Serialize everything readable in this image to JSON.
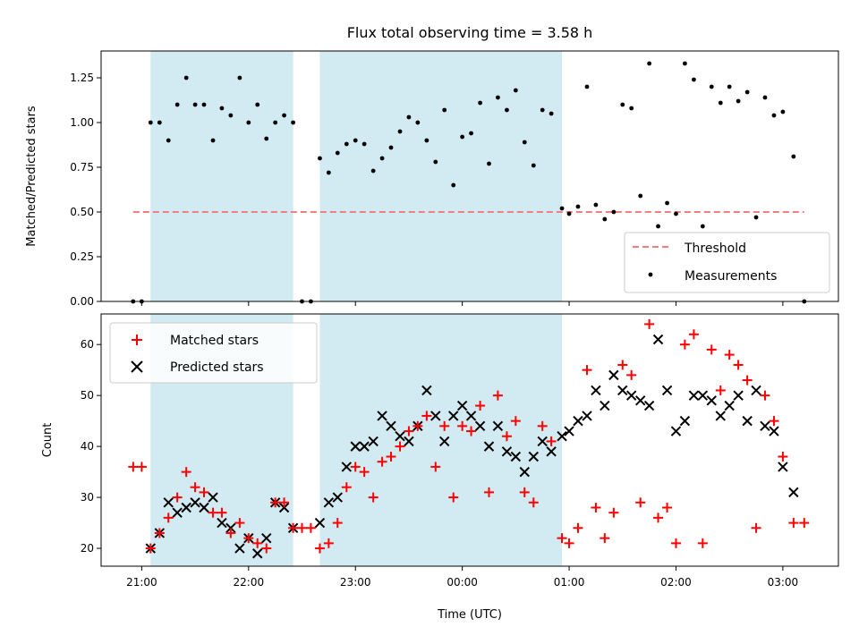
{
  "chart_data": [
    {
      "type": "scatter",
      "panel": "top",
      "title": "Flux total observing time = 3.58 h",
      "xlabel": "",
      "ylabel": "Matched/Predicted stars",
      "ylim": [
        0,
        1.4
      ],
      "yticks": [
        0,
        0.25,
        0.5,
        0.75,
        1.0,
        1.25
      ],
      "ytick_labels": [
        "0.00",
        "0.25",
        "0.50",
        "0.75",
        "1.00",
        "1.25"
      ],
      "x_unit": "hours since 21:00 UTC",
      "xlim": [
        -0.38,
        6.52
      ],
      "xticks": [
        0,
        1,
        2,
        3,
        4,
        5,
        6
      ],
      "shaded_spans": [
        [
          0.083,
          1.417
        ],
        [
          1.667,
          3.933
        ]
      ],
      "threshold": {
        "name": "Threshold",
        "y": 0.5,
        "x": [
          -0.08,
          6.2
        ],
        "color": "#f08080",
        "style": "dashed"
      },
      "series": [
        {
          "name": "Measurements",
          "color": "#000000",
          "marker": "dot",
          "points": [
            [
              -0.08,
              0.0
            ],
            [
              0.0,
              0.0
            ],
            [
              0.083,
              1.0
            ],
            [
              0.167,
              1.0
            ],
            [
              0.25,
              0.9
            ],
            [
              0.333,
              1.1
            ],
            [
              0.417,
              1.25
            ],
            [
              0.5,
              1.1
            ],
            [
              0.583,
              1.1
            ],
            [
              0.667,
              0.9
            ],
            [
              0.75,
              1.08
            ],
            [
              0.833,
              1.04
            ],
            [
              0.917,
              1.25
            ],
            [
              1.0,
              1.0
            ],
            [
              1.083,
              1.1
            ],
            [
              1.167,
              0.91
            ],
            [
              1.25,
              1.0
            ],
            [
              1.333,
              1.04
            ],
            [
              1.417,
              1.0
            ],
            [
              1.5,
              0.0
            ],
            [
              1.583,
              0.0
            ],
            [
              1.667,
              0.8
            ],
            [
              1.75,
              0.72
            ],
            [
              1.833,
              0.83
            ],
            [
              1.917,
              0.88
            ],
            [
              2.0,
              0.9
            ],
            [
              2.083,
              0.88
            ],
            [
              2.167,
              0.73
            ],
            [
              2.25,
              0.8
            ],
            [
              2.333,
              0.86
            ],
            [
              2.417,
              0.95
            ],
            [
              2.5,
              1.03
            ],
            [
              2.583,
              1.0
            ],
            [
              2.667,
              0.9
            ],
            [
              2.75,
              0.78
            ],
            [
              2.833,
              1.07
            ],
            [
              2.917,
              0.65
            ],
            [
              3.0,
              0.92
            ],
            [
              3.083,
              0.94
            ],
            [
              3.167,
              1.11
            ],
            [
              3.25,
              0.77
            ],
            [
              3.333,
              1.14
            ],
            [
              3.417,
              1.07
            ],
            [
              3.5,
              1.18
            ],
            [
              3.583,
              0.89
            ],
            [
              3.667,
              0.76
            ],
            [
              3.75,
              1.07
            ],
            [
              3.833,
              1.05
            ],
            [
              3.933,
              0.52
            ],
            [
              4.0,
              0.49
            ],
            [
              4.083,
              0.53
            ],
            [
              4.167,
              1.2
            ],
            [
              4.25,
              0.54
            ],
            [
              4.333,
              0.46
            ],
            [
              4.417,
              0.5
            ],
            [
              4.5,
              1.1
            ],
            [
              4.583,
              1.08
            ],
            [
              4.667,
              0.59
            ],
            [
              4.75,
              1.33
            ],
            [
              4.833,
              0.42
            ],
            [
              4.917,
              0.55
            ],
            [
              5.0,
              0.49
            ],
            [
              5.083,
              1.33
            ],
            [
              5.167,
              1.24
            ],
            [
              5.25,
              0.42
            ],
            [
              5.333,
              1.2
            ],
            [
              5.417,
              1.11
            ],
            [
              5.5,
              1.2
            ],
            [
              5.583,
              1.12
            ],
            [
              5.667,
              1.17
            ],
            [
              5.75,
              0.47
            ],
            [
              5.833,
              1.14
            ],
            [
              5.917,
              1.04
            ],
            [
              6.0,
              1.06
            ],
            [
              6.1,
              0.81
            ],
            [
              6.2,
              0.0
            ]
          ]
        }
      ],
      "legend": {
        "location": "lower-right",
        "entries": [
          "Threshold",
          "Measurements"
        ]
      }
    },
    {
      "type": "scatter",
      "panel": "bottom",
      "title": "",
      "xlabel": "Time (UTC)",
      "ylabel": "Count",
      "ylim": [
        16.5,
        66
      ],
      "yticks": [
        20,
        30,
        40,
        50,
        60
      ],
      "ytick_labels": [
        "20",
        "30",
        "40",
        "50",
        "60"
      ],
      "x_unit": "hours since 21:00 UTC",
      "xlim": [
        -0.38,
        6.52
      ],
      "xticks": [
        0,
        1,
        2,
        3,
        4,
        5,
        6
      ],
      "xtick_labels": [
        "21:00",
        "22:00",
        "23:00",
        "00:00",
        "01:00",
        "02:00",
        "03:00"
      ],
      "shaded_spans": [
        [
          0.083,
          1.417
        ],
        [
          1.667,
          3.933
        ]
      ],
      "series": [
        {
          "name": "Matched stars",
          "color": "#ff0000",
          "marker": "plus",
          "points": [
            [
              -0.08,
              36
            ],
            [
              0.0,
              36
            ],
            [
              0.083,
              20
            ],
            [
              0.167,
              23
            ],
            [
              0.25,
              26
            ],
            [
              0.333,
              30
            ],
            [
              0.417,
              35
            ],
            [
              0.5,
              32
            ],
            [
              0.583,
              31
            ],
            [
              0.667,
              27
            ],
            [
              0.75,
              27
            ],
            [
              0.833,
              23
            ],
            [
              0.917,
              25
            ],
            [
              1.0,
              22
            ],
            [
              1.083,
              21
            ],
            [
              1.167,
              20
            ],
            [
              1.25,
              29
            ],
            [
              1.333,
              29
            ],
            [
              1.417,
              24
            ],
            [
              1.5,
              24
            ],
            [
              1.583,
              24
            ],
            [
              1.667,
              20
            ],
            [
              1.75,
              21
            ],
            [
              1.833,
              25
            ],
            [
              1.917,
              32
            ],
            [
              2.0,
              36
            ],
            [
              2.083,
              35
            ],
            [
              2.167,
              30
            ],
            [
              2.25,
              37
            ],
            [
              2.333,
              38
            ],
            [
              2.417,
              40
            ],
            [
              2.5,
              43
            ],
            [
              2.583,
              44
            ],
            [
              2.667,
              46
            ],
            [
              2.75,
              36
            ],
            [
              2.833,
              44
            ],
            [
              2.917,
              30
            ],
            [
              3.0,
              44
            ],
            [
              3.083,
              43
            ],
            [
              3.167,
              48
            ],
            [
              3.25,
              31
            ],
            [
              3.333,
              50
            ],
            [
              3.417,
              42
            ],
            [
              3.5,
              45
            ],
            [
              3.583,
              31
            ],
            [
              3.667,
              29
            ],
            [
              3.75,
              44
            ],
            [
              3.833,
              41
            ],
            [
              3.933,
              22
            ],
            [
              4.0,
              21
            ],
            [
              4.083,
              24
            ],
            [
              4.167,
              55
            ],
            [
              4.25,
              28
            ],
            [
              4.333,
              22
            ],
            [
              4.417,
              27
            ],
            [
              4.5,
              56
            ],
            [
              4.583,
              54
            ],
            [
              4.667,
              29
            ],
            [
              4.75,
              64
            ],
            [
              4.833,
              26
            ],
            [
              4.917,
              28
            ],
            [
              5.0,
              21
            ],
            [
              5.083,
              60
            ],
            [
              5.167,
              62
            ],
            [
              5.25,
              21
            ],
            [
              5.333,
              59
            ],
            [
              5.417,
              51
            ],
            [
              5.5,
              58
            ],
            [
              5.583,
              56
            ],
            [
              5.667,
              53
            ],
            [
              5.75,
              24
            ],
            [
              5.833,
              50
            ],
            [
              5.917,
              45
            ],
            [
              6.0,
              38
            ],
            [
              6.1,
              25
            ],
            [
              6.2,
              25
            ]
          ]
        },
        {
          "name": "Predicted stars",
          "color": "#000000",
          "marker": "x",
          "points": [
            [
              0.083,
              20
            ],
            [
              0.167,
              23
            ],
            [
              0.25,
              29
            ],
            [
              0.333,
              27
            ],
            [
              0.417,
              28
            ],
            [
              0.5,
              29
            ],
            [
              0.583,
              28
            ],
            [
              0.667,
              30
            ],
            [
              0.75,
              25
            ],
            [
              0.833,
              24
            ],
            [
              0.917,
              20
            ],
            [
              1.0,
              22
            ],
            [
              1.083,
              19
            ],
            [
              1.167,
              22
            ],
            [
              1.25,
              29
            ],
            [
              1.333,
              28
            ],
            [
              1.417,
              24
            ],
            [
              1.667,
              25
            ],
            [
              1.75,
              29
            ],
            [
              1.833,
              30
            ],
            [
              1.917,
              36
            ],
            [
              2.0,
              40
            ],
            [
              2.083,
              40
            ],
            [
              2.167,
              41
            ],
            [
              2.25,
              46
            ],
            [
              2.333,
              44
            ],
            [
              2.417,
              42
            ],
            [
              2.5,
              41
            ],
            [
              2.583,
              44
            ],
            [
              2.667,
              51
            ],
            [
              2.75,
              46
            ],
            [
              2.833,
              41
            ],
            [
              2.917,
              46
            ],
            [
              3.0,
              48
            ],
            [
              3.083,
              46
            ],
            [
              3.167,
              44
            ],
            [
              3.25,
              40
            ],
            [
              3.333,
              44
            ],
            [
              3.417,
              39
            ],
            [
              3.5,
              38
            ],
            [
              3.583,
              35
            ],
            [
              3.667,
              38
            ],
            [
              3.75,
              41
            ],
            [
              3.833,
              39
            ],
            [
              3.933,
              42
            ],
            [
              4.0,
              43
            ],
            [
              4.083,
              45
            ],
            [
              4.167,
              46
            ],
            [
              4.25,
              51
            ],
            [
              4.333,
              48
            ],
            [
              4.417,
              54
            ],
            [
              4.5,
              51
            ],
            [
              4.583,
              50
            ],
            [
              4.667,
              49
            ],
            [
              4.75,
              48
            ],
            [
              4.833,
              61
            ],
            [
              4.917,
              51
            ],
            [
              5.0,
              43
            ],
            [
              5.083,
              45
            ],
            [
              5.167,
              50
            ],
            [
              5.25,
              50
            ],
            [
              5.333,
              49
            ],
            [
              5.417,
              46
            ],
            [
              5.5,
              48
            ],
            [
              5.583,
              50
            ],
            [
              5.667,
              45
            ],
            [
              5.75,
              51
            ],
            [
              5.833,
              44
            ],
            [
              5.917,
              43
            ],
            [
              6.0,
              36
            ],
            [
              6.1,
              31
            ]
          ]
        }
      ],
      "legend": {
        "location": "upper-left",
        "entries": [
          "Matched stars",
          "Predicted stars"
        ]
      }
    }
  ],
  "colors": {
    "shade": "#add8e6",
    "threshold": "#f08080",
    "matched": "#ff0000",
    "predicted": "#000000",
    "measurements": "#000000"
  }
}
